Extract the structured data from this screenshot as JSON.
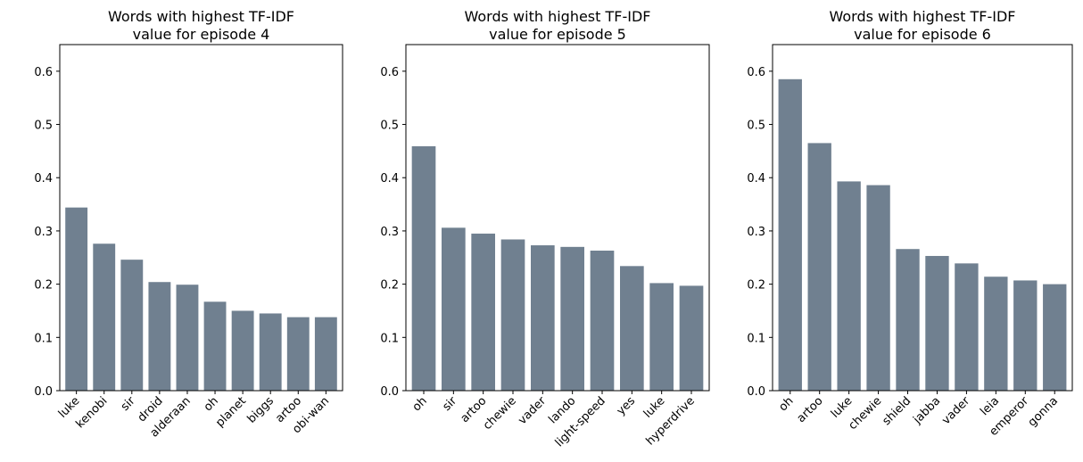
{
  "chart_data": [
    {
      "type": "bar",
      "title": "Words with highest TF-IDF\nvalue for episode 4",
      "categories": [
        "luke",
        "kenobi",
        "sir",
        "droid",
        "alderaan",
        "oh",
        "planet",
        "biggs",
        "artoo",
        "obi-wan"
      ],
      "values": [
        0.344,
        0.276,
        0.246,
        0.204,
        0.199,
        0.167,
        0.15,
        0.145,
        0.138,
        0.138
      ],
      "ylim": [
        0,
        0.65
      ],
      "yticks": [
        "0.0",
        "0.1",
        "0.2",
        "0.3",
        "0.4",
        "0.5",
        "0.6"
      ],
      "xlabel": "",
      "ylabel": "",
      "grid": false,
      "bar_color": "#708090"
    },
    {
      "type": "bar",
      "title": "Words with highest TF-IDF\nvalue for episode 5",
      "categories": [
        "oh",
        "sir",
        "artoo",
        "chewie",
        "vader",
        "lando",
        "light-speed",
        "yes",
        "luke",
        "hyperdrive"
      ],
      "values": [
        0.459,
        0.306,
        0.295,
        0.284,
        0.273,
        0.27,
        0.263,
        0.234,
        0.202,
        0.197
      ],
      "ylim": [
        0,
        0.65
      ],
      "yticks": [
        "0.0",
        "0.1",
        "0.2",
        "0.3",
        "0.4",
        "0.5",
        "0.6"
      ],
      "xlabel": "",
      "ylabel": "",
      "grid": false,
      "bar_color": "#708090"
    },
    {
      "type": "bar",
      "title": "Words with highest TF-IDF\nvalue for episode 6",
      "categories": [
        "oh",
        "artoo",
        "luke",
        "chewie",
        "shield",
        "jabba",
        "vader",
        "leia",
        "emperor",
        "gonna"
      ],
      "values": [
        0.585,
        0.465,
        0.393,
        0.386,
        0.266,
        0.253,
        0.239,
        0.214,
        0.207,
        0.2
      ],
      "ylim": [
        0,
        0.65
      ],
      "yticks": [
        "0.0",
        "0.1",
        "0.2",
        "0.3",
        "0.4",
        "0.5",
        "0.6"
      ],
      "xlabel": "",
      "ylabel": "",
      "grid": false,
      "bar_color": "#708090"
    }
  ]
}
